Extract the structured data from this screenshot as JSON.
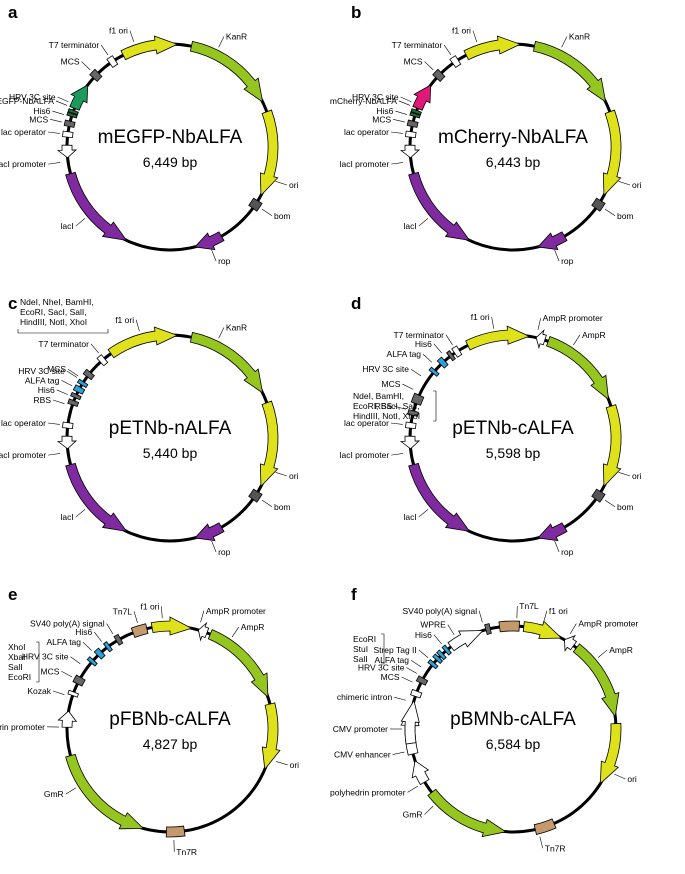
{
  "panels": [
    {
      "letter": "a",
      "name": "mEGFP-NbALFA",
      "size": "6,449 bp",
      "features": [
        {
          "type": "box",
          "a": -46,
          "w": 4,
          "color": "#666666",
          "label": "MCS"
        },
        {
          "type": "box",
          "a": -34,
          "w": 3.5,
          "color": "#ffffff",
          "label": "T7 terminator"
        },
        {
          "type": "arrow",
          "a1": -27,
          "a2": 4,
          "color": "#dfe21b",
          "label": "f1 ori",
          "la": -19
        },
        {
          "type": "arrow",
          "a1": 12,
          "a2": 64,
          "color": "#95c51f",
          "label": "KanR",
          "la": 26
        },
        {
          "type": "arrow",
          "a1": 70,
          "a2": 118,
          "color": "#dfe21b",
          "label": "ori",
          "la": 108
        },
        {
          "type": "box",
          "a": 124,
          "w": 5,
          "color": "#555555",
          "label": "bom"
        },
        {
          "type": "arrow",
          "a1": 150,
          "a2": 166,
          "color": "#7f2a9e",
          "label": "rop"
        },
        {
          "type": "arrow",
          "a1": 255,
          "a2": 205,
          "color": "#7f2a9e",
          "label": "lacI"
        },
        {
          "type": "arrow",
          "a1": 271,
          "a2": 264,
          "color": "#ffffff",
          "label": "lacI promoter",
          "la": 262
        },
        {
          "type": "box",
          "a": 277,
          "w": 3,
          "color": "#ffffff",
          "label": "lac operator"
        },
        {
          "type": "box",
          "a": 283,
          "w": 3,
          "color": "#666666",
          "label": "MCS"
        },
        {
          "type": "box",
          "a": 288,
          "w": 1.6,
          "color": "#1a6e3a",
          "label": "HRV 3C site",
          "la": 294
        },
        {
          "type": "box",
          "a": 290,
          "w": 1.6,
          "color": "#1a6e3a",
          "label": "His6",
          "la": 287
        },
        {
          "type": "arrow",
          "a1": 292,
          "a2": -53,
          "color": "#1c9a5b",
          "label": "mEGFP-NbALFA",
          "la": -68
        }
      ]
    },
    {
      "letter": "b",
      "name": "mCherry-NbALFA",
      "size": "6,443 bp",
      "features": [
        {
          "type": "box",
          "a": -46,
          "w": 4,
          "color": "#666666",
          "label": "MCS"
        },
        {
          "type": "box",
          "a": -34,
          "w": 3.5,
          "color": "#ffffff",
          "label": "T7 terminator"
        },
        {
          "type": "arrow",
          "a1": -27,
          "a2": 4,
          "color": "#dfe21b",
          "label": "f1 ori",
          "la": -19
        },
        {
          "type": "arrow",
          "a1": 12,
          "a2": 64,
          "color": "#95c51f",
          "label": "KanR",
          "la": 26
        },
        {
          "type": "arrow",
          "a1": 70,
          "a2": 118,
          "color": "#dfe21b",
          "label": "ori",
          "la": 108
        },
        {
          "type": "box",
          "a": 124,
          "w": 5,
          "color": "#555555",
          "label": "bom"
        },
        {
          "type": "arrow",
          "a1": 150,
          "a2": 166,
          "color": "#7f2a9e",
          "label": "rop"
        },
        {
          "type": "arrow",
          "a1": 255,
          "a2": 205,
          "color": "#7f2a9e",
          "label": "lacI"
        },
        {
          "type": "arrow",
          "a1": 271,
          "a2": 264,
          "color": "#ffffff",
          "label": "lacI promoter",
          "la": 262
        },
        {
          "type": "box",
          "a": 277,
          "w": 3,
          "color": "#ffffff",
          "label": "lac operator"
        },
        {
          "type": "box",
          "a": 283,
          "w": 3,
          "color": "#666666",
          "label": "MCS"
        },
        {
          "type": "box",
          "a": 288,
          "w": 1.6,
          "color": "#1a6e3a",
          "label": "HRV 3C site",
          "la": 294
        },
        {
          "type": "box",
          "a": 290,
          "w": 1.6,
          "color": "#1a6e3a",
          "label": "His6",
          "la": 287
        },
        {
          "type": "arrow",
          "a1": 292,
          "a2": -53,
          "color": "#e0187a",
          "label": "mCherry-NbALFA",
          "la": -68
        }
      ]
    },
    {
      "letter": "c",
      "name": "pETNb-nALFA",
      "size": "5,440 bp",
      "features": [
        {
          "type": "box",
          "a": -52,
          "w": 3,
          "color": "#666666",
          "label": "MCS",
          "la": -56
        },
        {
          "type": "box",
          "a": -41,
          "w": 3,
          "color": "#ffffff",
          "label": "T7 terminator",
          "la": -40
        },
        {
          "type": "arrow",
          "a1": -35,
          "a2": 4,
          "color": "#dfe21b",
          "label": "f1 ori",
          "la": -16
        },
        {
          "type": "arrow",
          "a1": 12,
          "a2": 64,
          "color": "#95c51f",
          "label": "KanR",
          "la": 26
        },
        {
          "type": "arrow",
          "a1": 70,
          "a2": 118,
          "color": "#dfe21b",
          "label": "ori",
          "la": 108
        },
        {
          "type": "box",
          "a": 124,
          "w": 5,
          "color": "#555555",
          "label": "bom"
        },
        {
          "type": "arrow",
          "a1": 150,
          "a2": 166,
          "color": "#7f2a9e",
          "label": "rop"
        },
        {
          "type": "arrow",
          "a1": 255,
          "a2": 205,
          "color": "#7f2a9e",
          "label": "lacI"
        },
        {
          "type": "arrow",
          "a1": 271,
          "a2": 264,
          "color": "#ffffff",
          "label": "lacI promoter",
          "la": 262
        },
        {
          "type": "box",
          "a": 277,
          "w": 3,
          "color": "#ffffff",
          "label": "lac operator"
        },
        {
          "type": "box",
          "a": 290,
          "w": 2.5,
          "color": "#666666",
          "label": "RBS",
          "la": 288
        },
        {
          "type": "box",
          "a": 294,
          "w": 2,
          "color": "#666666",
          "label": "His6",
          "la": 293
        },
        {
          "type": "box",
          "a": 298,
          "w": 3,
          "color": "#2aa3d8",
          "label": "ALFA tag",
          "la": 298
        },
        {
          "type": "box",
          "a": 302,
          "w": 2,
          "color": "#2aa3d8",
          "label": "HRV 3C site",
          "la": 303
        }
      ],
      "bracket": {
        "text": [
          "NdeI, NheI, BamHI,",
          "EcoRI, SacI, SalI,",
          "HindIII, NotI, XhoI"
        ]
      }
    },
    {
      "letter": "d",
      "name": "pETNb-cALFA",
      "size": "5,598 bp",
      "features": [
        {
          "type": "box",
          "a": -33,
          "w": 3,
          "color": "#ffffff",
          "label": "T7 terminator",
          "la": -33
        },
        {
          "type": "box",
          "a": -37,
          "w": 2,
          "color": "#666666",
          "label": "His6",
          "la": -40
        },
        {
          "type": "box",
          "a": -43,
          "w": 3,
          "color": "#2aa3d8",
          "label": "ALFA tag",
          "la": -47
        },
        {
          "type": "box",
          "a": -50,
          "w": 2,
          "color": "#2aa3d8",
          "label": "HRV 3C site",
          "la": -56
        },
        {
          "type": "arrow",
          "a1": -26,
          "a2": 9,
          "color": "#dfe21b",
          "label": "f1 ori",
          "la": -10
        },
        {
          "type": "arrow",
          "a1": 18,
          "a2": 13,
          "color": "#ffffff",
          "label": "AmpR promoter",
          "la": 13
        },
        {
          "type": "arrow",
          "a1": 20,
          "a2": 68,
          "color": "#95c51f",
          "label": "AmpR",
          "la": 33
        },
        {
          "type": "arrow",
          "a1": 72,
          "a2": 118,
          "color": "#dfe21b",
          "label": "ori",
          "la": 108
        },
        {
          "type": "box",
          "a": 124,
          "w": 5,
          "color": "#555555",
          "label": "bom"
        },
        {
          "type": "arrow",
          "a1": 150,
          "a2": 166,
          "color": "#7f2a9e",
          "label": "rop"
        },
        {
          "type": "arrow",
          "a1": 255,
          "a2": 205,
          "color": "#7f2a9e",
          "label": "lacI"
        },
        {
          "type": "arrow",
          "a1": 271,
          "a2": 264,
          "color": "#ffffff",
          "label": "lacI promoter",
          "la": 262
        },
        {
          "type": "box",
          "a": 277,
          "w": 3,
          "color": "#ffffff",
          "label": "lac operator"
        },
        {
          "type": "box",
          "a": 284,
          "w": 2.5,
          "color": "#666666",
          "label": "RBS",
          "la": 285
        },
        {
          "type": "box",
          "a": 292,
          "w": 5,
          "color": "#666666",
          "label": "MCS",
          "la": 296
        }
      ],
      "bracket": {
        "text": [
          "NdeI, BamHI,",
          "EcoRI, SacI, SalI,",
          "HindIII, NotI, XhoI"
        ]
      }
    },
    {
      "letter": "e",
      "name": "pFBNb-cALFA",
      "size": "4,827 bp",
      "features": [
        {
          "type": "box",
          "a": -17,
          "w": 8,
          "color": "#c49a6c",
          "label": "Tn7L",
          "la": -17
        },
        {
          "type": "box",
          "a": -30,
          "w": 2.5,
          "color": "#666666",
          "label": "SV40 poly(A) signal",
          "la": -31
        },
        {
          "type": "box",
          "a": -37,
          "w": 2,
          "color": "#2aa3d8",
          "label": "His6",
          "la": -38
        },
        {
          "type": "box",
          "a": -43,
          "w": 3,
          "color": "#2aa3d8",
          "label": "ALFA tag",
          "la": -45
        },
        {
          "type": "box",
          "a": -49,
          "w": 2,
          "color": "#2aa3d8",
          "label": "HRV 3C site",
          "la": -54
        },
        {
          "type": "box",
          "a": -62,
          "w": 4,
          "color": "#666666",
          "label": "MCS",
          "la": -62
        },
        {
          "type": "box",
          "a": -70,
          "w": 2,
          "color": "#ffffff",
          "label": "Kozak",
          "la": -72
        },
        {
          "type": "arrow",
          "a1": -10,
          "a2": 12,
          "color": "#dfe21b",
          "label": "f1 ori",
          "la": -4
        },
        {
          "type": "arrow",
          "a1": 21,
          "a2": 16,
          "color": "#ffffff",
          "label": "AmpR promoter",
          "la": 16
        },
        {
          "type": "arrow",
          "a1": 23,
          "a2": 72,
          "color": "#95c51f",
          "label": "AmpR",
          "la": 34
        },
        {
          "type": "arrow",
          "a1": 76,
          "a2": 113,
          "color": "#dfe21b",
          "label": "ori",
          "la": 107
        },
        {
          "type": "box",
          "a": 177,
          "w": 10,
          "color": "#c49a6c",
          "label": "Tn7R",
          "la": 178
        },
        {
          "type": "arrow",
          "a1": 255,
          "a2": 195,
          "color": "#95c51f",
          "label": "GmR",
          "la": 238
        },
        {
          "type": "arrow",
          "a1": 271,
          "a2": 280,
          "color": "#ffffff",
          "label": "polyhedrin promoter",
          "la": 271
        }
      ],
      "bracket": {
        "text": [
          "XhoI",
          "XbaI",
          "SalI",
          "EcoRI"
        ]
      }
    },
    {
      "letter": "f",
      "name": "pBMNb-cALFA",
      "size": "6,584 bp",
      "features": [
        {
          "type": "box",
          "a": -2,
          "w": 11,
          "color": "#c49a6c",
          "label": "Tn7L",
          "la": 2
        },
        {
          "type": "box",
          "a": -14,
          "w": 2.5,
          "color": "#666666",
          "label": "SV40 poly(A) signal",
          "la": -16
        },
        {
          "type": "arrow",
          "a1": -37,
          "a2": -17,
          "color": "#ffffff",
          "label": "WPRE",
          "la": -32
        },
        {
          "type": "box",
          "a": -40,
          "w": 2,
          "color": "#2aa3d8",
          "label": "His6",
          "la": -40
        },
        {
          "type": "box",
          "a": -44,
          "w": 2,
          "color": "#2aa3d8",
          "label": "Strep Tag II",
          "la": -50
        },
        {
          "type": "box",
          "a": -47,
          "w": 2,
          "color": "#2aa3d8",
          "label": "ALFA tag",
          "la": -56
        },
        {
          "type": "box",
          "a": -51,
          "w": 2,
          "color": "#2aa3d8",
          "label": "HRV 3C site",
          "la": -60
        },
        {
          "type": "box",
          "a": -62,
          "w": 3,
          "color": "#666666",
          "label": "MCS",
          "la": -65
        },
        {
          "type": "box",
          "a": -70,
          "w": 3,
          "color": "#ffffff",
          "label": "chimeric intron",
          "la": -75
        },
        {
          "type": "arrow",
          "a1": 6,
          "a2": 28,
          "color": "#dfe21b",
          "label": "f1 ori",
          "la": 16
        },
        {
          "type": "arrow",
          "a1": 36,
          "a2": 30,
          "color": "#ffffff",
          "label": "AmpR promoter",
          "la": 31
        },
        {
          "type": "arrow",
          "a1": 38,
          "a2": 83,
          "color": "#95c51f",
          "label": "AmpR",
          "la": 50
        },
        {
          "type": "arrow",
          "a1": 87,
          "a2": 122,
          "color": "#dfe21b",
          "label": "ori",
          "la": 114
        },
        {
          "type": "box",
          "a": 162,
          "w": 11,
          "color": "#c49a6c",
          "label": "Tn7R",
          "la": 166
        },
        {
          "type": "arrow",
          "a1": 232,
          "a2": 184,
          "color": "#95c51f",
          "label": "GmR",
          "la": 226
        },
        {
          "type": "arrow",
          "a1": 239,
          "a2": 252,
          "color": "#ffffff",
          "label": "polyhedrin promoter",
          "la": 239
        },
        {
          "type": "arrow",
          "a1": 256,
          "a2": 284,
          "color": "#ffffff",
          "label": "CMV enhancer",
          "la": 258
        },
        {
          "type": "arrow",
          "a1": 262,
          "a2": 286,
          "color": "#ffffff",
          "label": "CMV promoter",
          "la": 270
        }
      ],
      "bracket": {
        "text": [
          "EcoRI",
          "StuI",
          "SalI"
        ]
      }
    }
  ]
}
